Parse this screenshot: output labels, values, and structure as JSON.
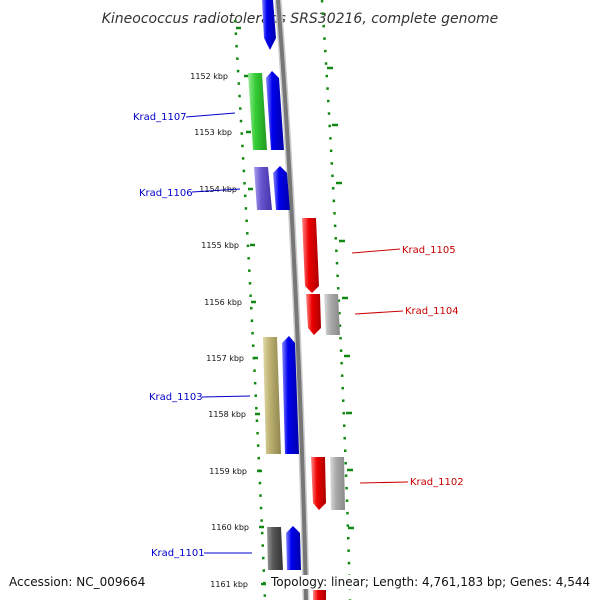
{
  "title": "Kineococcus radiotolerans SRS30216, complete genome",
  "footer": {
    "accession": "Accession: NC_009664",
    "summary": "Topology: linear; Length: 4,761,183 bp; Genes: 4,544"
  },
  "ruler": {
    "tick_labels": [
      "1152 kbp",
      "1153 kbp",
      "1154 kbp",
      "1155 kbp",
      "1156 kbp",
      "1157 kbp",
      "1158 kbp",
      "1159 kbp",
      "1160 kbp",
      "1161 kbp"
    ]
  },
  "colors": {
    "blue_gene": "#0000ee",
    "green_gene": "#33cc33",
    "lavender_gene": "#6655cc",
    "olive_gene": "#bbb070",
    "dark_gene": "#555555",
    "red_gene": "#ee0000",
    "grey_gene": "#aaaaaa",
    "backbone": "#888888",
    "dotted_guide": "#118811",
    "left_label": "#0000cc",
    "right_label": "#cc0000"
  },
  "gene_labels": {
    "left": [
      "Krad_1107",
      "Krad_1106",
      "Krad_1103",
      "Krad_1101"
    ],
    "right": [
      "Krad_1105",
      "Krad_1104",
      "Krad_1102"
    ]
  }
}
